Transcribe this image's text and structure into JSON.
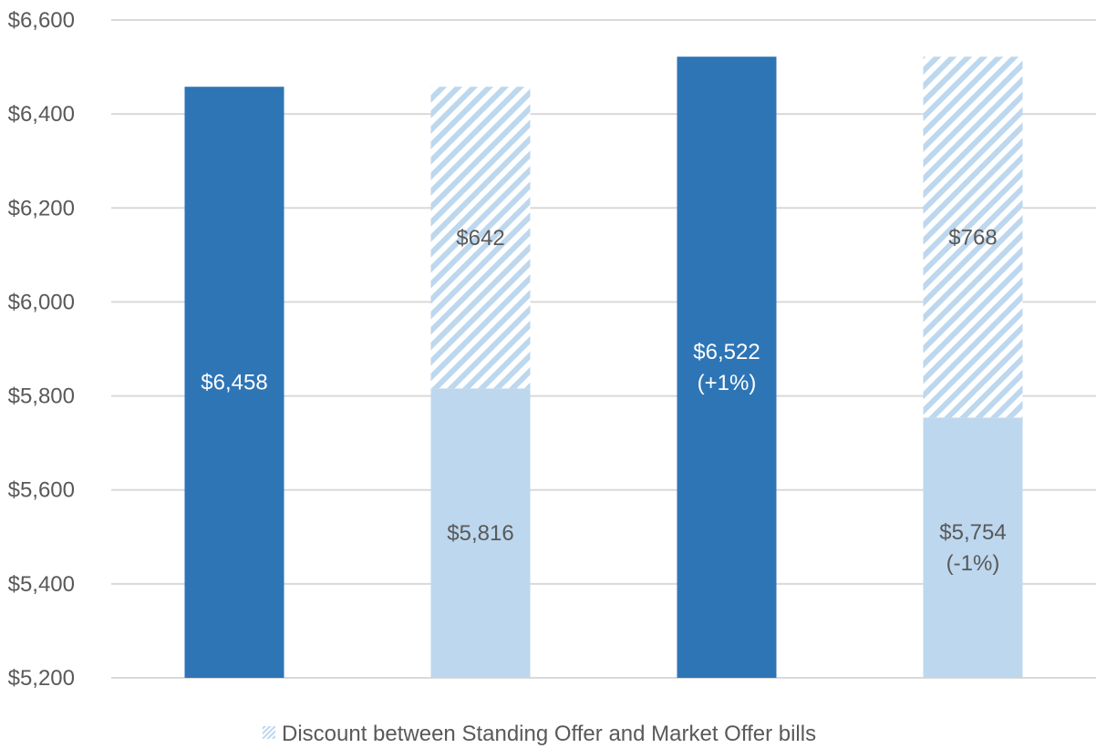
{
  "chart_data": {
    "type": "bar",
    "stacked": true,
    "categories": [
      "",
      "",
      "",
      ""
    ],
    "ylim": [
      5200,
      6600
    ],
    "yticks": [
      5200,
      5400,
      5600,
      5800,
      6000,
      6200,
      6400,
      6600
    ],
    "ytick_labels": [
      "$5,200",
      "$5,400",
      "$5,600",
      "$5,800",
      "$6,000",
      "$6,200",
      "$6,400",
      "$6,600"
    ],
    "grid": true,
    "legend_position": "bottom",
    "legend_label": "Discount between Standing Offer and Market Offer bills",
    "colors": {
      "standing": "#2e75b6",
      "market": "#bdd7ee",
      "discount_stripe": "#bdd7ee",
      "label_on_dark": "#ffffff",
      "label_on_light": "#595959",
      "grid": "#d9d9d9"
    },
    "bars": [
      {
        "kind": "standing",
        "value": 6458,
        "label": [
          "$6,458"
        ]
      },
      {
        "kind": "market",
        "value": 5816,
        "label": [
          "$5,816"
        ],
        "discount": 642,
        "discount_label": "$642"
      },
      {
        "kind": "standing",
        "value": 6522,
        "label": [
          "$6,522",
          "(+1%)"
        ]
      },
      {
        "kind": "market",
        "value": 5754,
        "label": [
          "$5,754",
          "(-1%)"
        ],
        "discount": 768,
        "discount_label": "$768"
      }
    ]
  }
}
